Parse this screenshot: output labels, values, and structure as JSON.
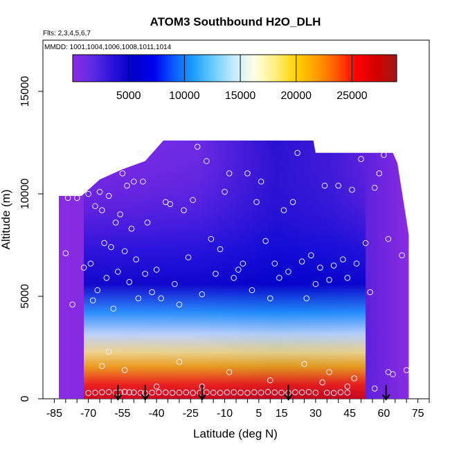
{
  "chart_data": {
    "type": "heatmap",
    "title": "ATOM3 Southbound H2O_DLH",
    "flights_note": "Flts: 2,3,4,5,6,7",
    "dates_note": "MMDD: 1001,1004,1006,1008,1011,1014",
    "xlabel": "Latitude (deg N)",
    "ylabel": "Altitude (m)",
    "xlim": [
      -90,
      80
    ],
    "ylim": [
      0,
      17500
    ],
    "x_ticks": [
      -85,
      -70,
      -55,
      -40,
      -25,
      -10,
      5,
      15,
      30,
      45,
      60,
      75
    ],
    "x_tick_labels": [
      "-85",
      "-70",
      "-55",
      "-40",
      "-25",
      "-10",
      "5",
      "15",
      "30",
      "45",
      "60",
      "75"
    ],
    "y_ticks": [
      0,
      5000,
      10000,
      15000
    ],
    "y_tick_labels": [
      "0",
      "5000",
      "10000",
      "15000"
    ],
    "colorbar": {
      "range": [
        0,
        29000
      ],
      "ticks": [
        5000,
        10000,
        15000,
        20000,
        25000
      ],
      "tick_labels": [
        "5000",
        "10000",
        "15000",
        "20000",
        "25000"
      ],
      "colors": [
        "#8a2be2",
        "#5b2be6",
        "#2a10d8",
        "#0000c8",
        "#0000ee",
        "#0a5cff",
        "#1fa0ff",
        "#6fcfff",
        "#c8ecff",
        "#ffffe0",
        "#ffef80",
        "#ffd400",
        "#ffa000",
        "#ff5a00",
        "#ff0000",
        "#d40000",
        "#a01818"
      ]
    },
    "profile_markers_lat": [
      -57,
      -45,
      -20,
      18,
      61
    ],
    "coverage": {
      "lat_range": [
        -83,
        71
      ],
      "top_altitude": [
        [
          -83,
          9900
        ],
        [
          -73,
          9900
        ],
        [
          -65,
          10700
        ],
        [
          -55,
          11200
        ],
        [
          -45,
          11600
        ],
        [
          -37,
          12600
        ],
        [
          -25,
          12600
        ],
        [
          -10,
          12600
        ],
        [
          5,
          12600
        ],
        [
          20,
          12600
        ],
        [
          29,
          12600
        ],
        [
          30,
          12000
        ],
        [
          40,
          12000
        ],
        [
          55,
          12000
        ],
        [
          64,
          12000
        ],
        [
          66,
          11500
        ],
        [
          71,
          8000
        ]
      ]
    },
    "observation_points": [
      [
        -80,
        7100
      ],
      [
        -79,
        9800
      ],
      [
        -77,
        4600
      ],
      [
        -75,
        9800
      ],
      [
        -72,
        6400
      ],
      [
        -70,
        10000
      ],
      [
        -69,
        6600
      ],
      [
        -68,
        4800
      ],
      [
        -67,
        9400
      ],
      [
        -66,
        5300
      ],
      [
        -65,
        10100
      ],
      [
        -64,
        9200
      ],
      [
        -63,
        7600
      ],
      [
        -62,
        5900
      ],
      [
        -61,
        9900
      ],
      [
        -60,
        7400
      ],
      [
        -59,
        4400
      ],
      [
        -58,
        8600
      ],
      [
        -57,
        6200
      ],
      [
        -56,
        9000
      ],
      [
        -55,
        11000
      ],
      [
        -54,
        7200
      ],
      [
        -53,
        10400
      ],
      [
        -52,
        5700
      ],
      [
        -51,
        8300
      ],
      [
        -50,
        10600
      ],
      [
        -49,
        6800
      ],
      [
        -48,
        4900
      ],
      [
        -47,
        12000
      ],
      [
        -46,
        10600
      ],
      [
        -45,
        6100
      ],
      [
        -44,
        8600
      ],
      [
        -42,
        5200
      ],
      [
        -40,
        6300
      ],
      [
        -38,
        4900
      ],
      [
        -36,
        9600
      ],
      [
        -34,
        9500
      ],
      [
        -32,
        5600
      ],
      [
        -30,
        4600
      ],
      [
        -28,
        9200
      ],
      [
        -26,
        6900
      ],
      [
        -24,
        9700
      ],
      [
        -22,
        12300
      ],
      [
        -20,
        5100
      ],
      [
        -18,
        11600
      ],
      [
        -16,
        7800
      ],
      [
        -14,
        6100
      ],
      [
        -12,
        7300
      ],
      [
        -10,
        10100
      ],
      [
        -8,
        11000
      ],
      [
        -6,
        5900
      ],
      [
        -4,
        6300
      ],
      [
        -2,
        6600
      ],
      [
        0,
        11000
      ],
      [
        2,
        5300
      ],
      [
        4,
        9600
      ],
      [
        6,
        10600
      ],
      [
        8,
        7700
      ],
      [
        10,
        4900
      ],
      [
        12,
        6600
      ],
      [
        14,
        5900
      ],
      [
        16,
        9200
      ],
      [
        18,
        6200
      ],
      [
        20,
        9600
      ],
      [
        22,
        12000
      ],
      [
        24,
        6700
      ],
      [
        26,
        4900
      ],
      [
        28,
        7000
      ],
      [
        30,
        5600
      ],
      [
        32,
        6400
      ],
      [
        34,
        10400
      ],
      [
        36,
        5800
      ],
      [
        38,
        6500
      ],
      [
        40,
        10400
      ],
      [
        42,
        6800
      ],
      [
        44,
        5900
      ],
      [
        46,
        10200
      ],
      [
        48,
        6600
      ],
      [
        50,
        11700
      ],
      [
        52,
        7600
      ],
      [
        54,
        5200
      ],
      [
        56,
        10300
      ],
      [
        58,
        11000
      ],
      [
        60,
        11900
      ],
      [
        62,
        7800
      ],
      [
        64,
        1200
      ],
      [
        66,
        11900
      ],
      [
        68,
        7000
      ],
      [
        70,
        1400
      ],
      [
        -70,
        280
      ],
      [
        -67,
        300
      ],
      [
        -64,
        320
      ],
      [
        -61,
        330
      ],
      [
        -58,
        300
      ],
      [
        -56,
        310
      ],
      [
        -54,
        340
      ],
      [
        -52,
        320
      ],
      [
        -50,
        310
      ],
      [
        -47,
        290
      ],
      [
        -45,
        280
      ],
      [
        -42,
        300
      ],
      [
        -39,
        320
      ],
      [
        -36,
        310
      ],
      [
        -33,
        290
      ],
      [
        -30,
        300
      ],
      [
        -27,
        310
      ],
      [
        -24,
        290
      ],
      [
        -21,
        300
      ],
      [
        -18,
        320
      ],
      [
        -15,
        300
      ],
      [
        -12,
        290
      ],
      [
        -9,
        310
      ],
      [
        -6,
        320
      ],
      [
        -3,
        300
      ],
      [
        0,
        290
      ],
      [
        3,
        320
      ],
      [
        6,
        300
      ],
      [
        9,
        330
      ],
      [
        12,
        310
      ],
      [
        15,
        300
      ],
      [
        18,
        290
      ],
      [
        21,
        320
      ],
      [
        24,
        310
      ],
      [
        27,
        330
      ],
      [
        30,
        300
      ],
      [
        33,
        800
      ],
      [
        35,
        300
      ],
      [
        38,
        280
      ],
      [
        41,
        320
      ],
      [
        44,
        300
      ],
      [
        47,
        1000
      ],
      [
        -54,
        1400
      ],
      [
        -40,
        600
      ],
      [
        -30,
        1800
      ],
      [
        -20,
        600
      ],
      [
        -8,
        1300
      ],
      [
        10,
        900
      ],
      [
        25,
        1700
      ],
      [
        36,
        1300
      ],
      [
        44,
        600
      ],
      [
        56,
        500
      ],
      [
        62,
        1300
      ],
      [
        -64,
        1600
      ],
      [
        -61,
        2300
      ]
    ]
  }
}
